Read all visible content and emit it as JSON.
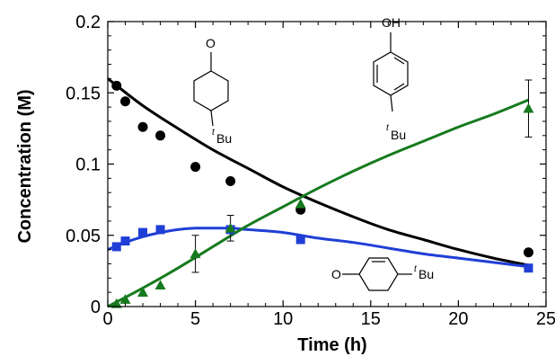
{
  "chart_data": {
    "type": "scatter",
    "xlabel": "Time (h)",
    "ylabel": "Concentration (M)",
    "xlim": [
      0,
      25
    ],
    "ylim": [
      0,
      0.2
    ],
    "xticks": [
      0,
      5,
      10,
      15,
      20,
      25
    ],
    "yticks": [
      0,
      0.05,
      0.1,
      0.15,
      0.2
    ],
    "xtick_labels": [
      "0",
      "5",
      "10",
      "15",
      "20",
      "25"
    ],
    "ytick_labels": [
      "0",
      "0.05",
      "0.1",
      "0.15",
      "0.2"
    ],
    "grid": false,
    "series": [
      {
        "marker": "circle",
        "color": "#000000",
        "points": [
          [
            0.5,
            0.155
          ],
          [
            1,
            0.144
          ],
          [
            2,
            0.126
          ],
          [
            3,
            0.12
          ],
          [
            5,
            0.098
          ],
          [
            7,
            0.088
          ],
          [
            11,
            0.068
          ],
          [
            24,
            0.038
          ]
        ],
        "fit": [
          [
            0,
            0.16
          ],
          [
            2,
            0.141
          ],
          [
            4,
            0.125
          ],
          [
            6,
            0.11
          ],
          [
            8,
            0.097
          ],
          [
            10,
            0.084
          ],
          [
            12,
            0.073
          ],
          [
            14,
            0.063
          ],
          [
            16,
            0.054
          ],
          [
            18,
            0.047
          ],
          [
            20,
            0.04
          ],
          [
            22,
            0.034
          ],
          [
            24,
            0.029
          ]
        ]
      },
      {
        "marker": "square",
        "color": "#1f3fd6",
        "points": [
          [
            0.5,
            0.042
          ],
          [
            1,
            0.046
          ],
          [
            2,
            0.052
          ],
          [
            3,
            0.054
          ],
          [
            7,
            0.054
          ],
          [
            11,
            0.047
          ],
          [
            24,
            0.027
          ]
        ],
        "fit": [
          [
            0,
            0.04
          ],
          [
            1,
            0.045
          ],
          [
            2,
            0.049
          ],
          [
            3,
            0.052
          ],
          [
            4,
            0.054
          ],
          [
            5,
            0.055
          ],
          [
            6,
            0.055
          ],
          [
            7,
            0.055
          ],
          [
            8,
            0.054
          ],
          [
            10,
            0.052
          ],
          [
            12,
            0.048
          ],
          [
            14,
            0.045
          ],
          [
            16,
            0.041
          ],
          [
            18,
            0.037
          ],
          [
            20,
            0.034
          ],
          [
            22,
            0.031
          ],
          [
            24,
            0.028
          ]
        ]
      },
      {
        "marker": "triangle",
        "color": "#167a1e",
        "points": [
          [
            0.5,
            0.002
          ],
          [
            1,
            0.005
          ],
          [
            2,
            0.01
          ],
          [
            3,
            0.015
          ],
          [
            5,
            0.037
          ],
          [
            7,
            0.055
          ],
          [
            11,
            0.072
          ],
          [
            24,
            0.139
          ]
        ],
        "errors": [
          [
            5,
            0.037,
            0.013
          ],
          [
            7,
            0.055,
            0.009
          ],
          [
            24,
            0.139,
            0.02
          ]
        ],
        "fit": [
          [
            0,
            0.0
          ],
          [
            2,
            0.013
          ],
          [
            4,
            0.027
          ],
          [
            6,
            0.042
          ],
          [
            8,
            0.057
          ],
          [
            10,
            0.07
          ],
          [
            12,
            0.083
          ],
          [
            14,
            0.095
          ],
          [
            16,
            0.106
          ],
          [
            18,
            0.116
          ],
          [
            20,
            0.126
          ],
          [
            22,
            0.135
          ],
          [
            24,
            0.145
          ]
        ]
      }
    ],
    "annotations": {
      "ketone_label": "Bu",
      "phenol_oh": "OH",
      "phenol_label": "Bu",
      "enone_o": "O",
      "enone_label": "Bu",
      "tert_prefix": "t"
    }
  }
}
